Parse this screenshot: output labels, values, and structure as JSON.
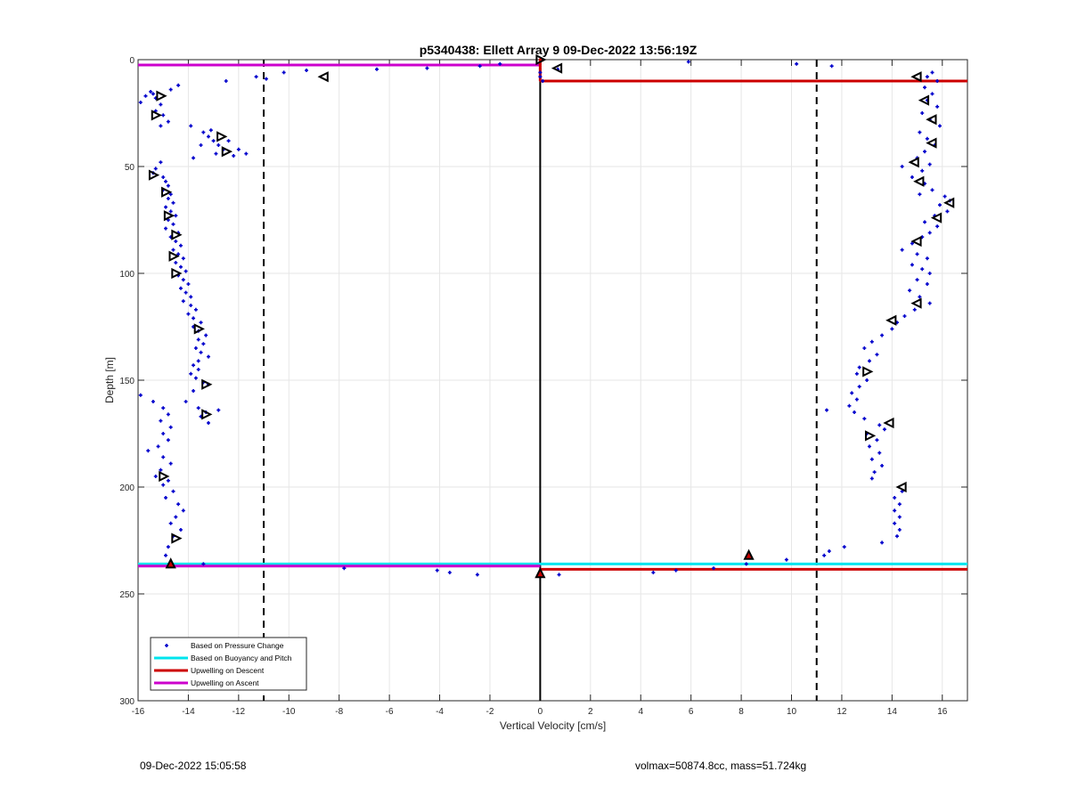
{
  "chart_data": {
    "type": "scatter",
    "title": "p5340438: Ellett Array 9 09-Dec-2022 13:56:19Z",
    "xlabel": "Vertical Velocity [cm/s]",
    "ylabel": "Depth [m]",
    "xlim": [
      -16,
      17
    ],
    "ylim": [
      300,
      0
    ],
    "y_reversed": true,
    "grid": true,
    "xticks": [
      -16,
      -14,
      -12,
      -10,
      -8,
      -6,
      -4,
      -2,
      0,
      2,
      4,
      6,
      8,
      10,
      12,
      14,
      16
    ],
    "yticks": [
      0,
      50,
      100,
      150,
      200,
      250,
      300
    ],
    "legend_position": "bottom-left",
    "legend": [
      {
        "label": "Based on Pressure Change",
        "color": "#0000cc",
        "style": "marker"
      },
      {
        "label": "Based on Buoyancy and Pitch",
        "color": "#00e5ee",
        "style": "line"
      },
      {
        "label": "Upwelling on Descent",
        "color": "#cc0000",
        "style": "line"
      },
      {
        "label": "Upwelling on Ascent",
        "color": "#cc00cc",
        "style": "line"
      }
    ],
    "vertical_lines": [
      {
        "x": -11,
        "style": "dashed",
        "color": "#000000"
      },
      {
        "x": 11,
        "style": "dashed",
        "color": "#000000"
      },
      {
        "x": 0,
        "style": "solid",
        "color": "#000000"
      }
    ],
    "series": [
      {
        "name": "Based on Buoyancy and Pitch",
        "type": "hline",
        "color": "#00e5ee",
        "segments": [
          {
            "x": [
              -16,
              17
            ],
            "y": 236
          }
        ]
      },
      {
        "name": "Upwelling on Descent",
        "type": "hline",
        "color": "#cc0000",
        "segments": [
          {
            "x": [
              0,
              17
            ],
            "y": 10
          },
          {
            "x": [
              0,
              17
            ],
            "y": 238.5
          }
        ]
      },
      {
        "name": "Upwelling on Ascent",
        "type": "hline",
        "color": "#cc00cc",
        "segments": [
          {
            "x": [
              -16,
              0
            ],
            "y": 2.5
          },
          {
            "x": [
              -16,
              0
            ],
            "y": 237
          }
        ]
      },
      {
        "name": "Based on Pressure Change",
        "type": "scatter",
        "color": "#0000cc",
        "points": [
          [
            -15.9,
            20
          ],
          [
            -15.7,
            17
          ],
          [
            -15.5,
            15
          ],
          [
            -15.3,
            18
          ],
          [
            -15.1,
            21
          ],
          [
            -15.3,
            24
          ],
          [
            -15.0,
            26
          ],
          [
            -14.8,
            29
          ],
          [
            -15.1,
            31
          ],
          [
            -15.4,
            16
          ],
          [
            -14.4,
            12
          ],
          [
            -14.7,
            14
          ],
          [
            -13.9,
            31
          ],
          [
            -13.4,
            34
          ],
          [
            -13.2,
            36
          ],
          [
            -13.0,
            38
          ],
          [
            -12.8,
            40
          ],
          [
            -12.6,
            42
          ],
          [
            -12.9,
            44
          ],
          [
            -13.5,
            40
          ],
          [
            -13.8,
            46
          ],
          [
            -12.2,
            45
          ],
          [
            -12.0,
            42
          ],
          [
            -12.4,
            38
          ],
          [
            -11.7,
            44
          ],
          [
            -13.1,
            33
          ],
          [
            -15.1,
            48
          ],
          [
            -15.3,
            51
          ],
          [
            -15.4,
            53
          ],
          [
            -15.0,
            55
          ],
          [
            -14.9,
            57
          ],
          [
            -14.8,
            59
          ],
          [
            -15.0,
            61
          ],
          [
            -14.7,
            63
          ],
          [
            -14.8,
            65
          ],
          [
            -14.6,
            67
          ],
          [
            -14.9,
            69
          ],
          [
            -14.7,
            71
          ],
          [
            -14.5,
            73
          ],
          [
            -14.8,
            75
          ],
          [
            -14.6,
            77
          ],
          [
            -14.9,
            79
          ],
          [
            -14.4,
            81
          ],
          [
            -14.7,
            83
          ],
          [
            -14.5,
            85
          ],
          [
            -14.3,
            87
          ],
          [
            -14.6,
            89
          ],
          [
            -14.4,
            91
          ],
          [
            -14.2,
            93
          ],
          [
            -14.5,
            95
          ],
          [
            -14.3,
            97
          ],
          [
            -14.1,
            99
          ],
          [
            -14.4,
            101
          ],
          [
            -14.2,
            103
          ],
          [
            -14.0,
            105
          ],
          [
            -14.3,
            107
          ],
          [
            -14.1,
            109
          ],
          [
            -13.9,
            111
          ],
          [
            -14.2,
            113
          ],
          [
            -13.9,
            115
          ],
          [
            -13.7,
            117
          ],
          [
            -14.0,
            119
          ],
          [
            -13.8,
            121
          ],
          [
            -13.5,
            123
          ],
          [
            -13.8,
            125
          ],
          [
            -13.6,
            127
          ],
          [
            -13.3,
            129
          ],
          [
            -13.6,
            131
          ],
          [
            -13.4,
            133
          ],
          [
            -13.7,
            135
          ],
          [
            -13.5,
            137
          ],
          [
            -13.2,
            139
          ],
          [
            -13.6,
            141
          ],
          [
            -13.8,
            143
          ],
          [
            -13.6,
            145
          ],
          [
            -13.9,
            147
          ],
          [
            -13.7,
            149
          ],
          [
            -13.4,
            151
          ],
          [
            -13.2,
            152
          ],
          [
            -13.8,
            155
          ],
          [
            -14.1,
            160
          ],
          [
            -13.6,
            163
          ],
          [
            -13.3,
            165
          ],
          [
            -13.5,
            167
          ],
          [
            -13.2,
            170
          ],
          [
            -12.8,
            164
          ],
          [
            -15.9,
            157
          ],
          [
            -15.4,
            160
          ],
          [
            -15.0,
            163
          ],
          [
            -14.8,
            166
          ],
          [
            -15.1,
            169
          ],
          [
            -14.7,
            172
          ],
          [
            -15.0,
            175
          ],
          [
            -14.8,
            178
          ],
          [
            -15.2,
            181
          ],
          [
            -15.6,
            183
          ],
          [
            -15.0,
            186
          ],
          [
            -14.7,
            189
          ],
          [
            -15.1,
            192
          ],
          [
            -15.3,
            195
          ],
          [
            -14.8,
            197
          ],
          [
            -15.0,
            199
          ],
          [
            -14.6,
            202
          ],
          [
            -14.9,
            205
          ],
          [
            -14.4,
            208
          ],
          [
            -14.2,
            211
          ],
          [
            -14.5,
            214
          ],
          [
            -14.7,
            217
          ],
          [
            -14.3,
            220
          ],
          [
            -14.6,
            223
          ],
          [
            -14.8,
            228
          ],
          [
            -14.9,
            232
          ],
          [
            -13.4,
            236
          ],
          [
            -10.2,
            6
          ],
          [
            -9.3,
            5
          ],
          [
            -6.5,
            4.5
          ],
          [
            -4.5,
            4
          ],
          [
            -2.4,
            3
          ],
          [
            -1.6,
            2
          ],
          [
            -12.5,
            10
          ],
          [
            -11.3,
            8
          ],
          [
            -10.9,
            9
          ],
          [
            -7.8,
            238
          ],
          [
            -4.1,
            239
          ],
          [
            -3.6,
            240
          ],
          [
            -2.5,
            241
          ],
          [
            0.0,
            6
          ],
          [
            0.0,
            8
          ],
          [
            0.1,
            10
          ],
          [
            0.7,
            4.5
          ],
          [
            5.9,
            1
          ],
          [
            10.2,
            2
          ],
          [
            11.6,
            3
          ],
          [
            0.75,
            241
          ],
          [
            4.5,
            240
          ],
          [
            5.4,
            239
          ],
          [
            6.9,
            238
          ],
          [
            8.2,
            236
          ],
          [
            9.8,
            234
          ],
          [
            11.3,
            232
          ],
          [
            11.5,
            230
          ],
          [
            12.1,
            228
          ],
          [
            11.4,
            164
          ],
          [
            15.4,
            8
          ],
          [
            15.6,
            6
          ],
          [
            15.8,
            10
          ],
          [
            15.3,
            13
          ],
          [
            15.6,
            16
          ],
          [
            15.4,
            19
          ],
          [
            15.8,
            22
          ],
          [
            15.2,
            25
          ],
          [
            15.5,
            28
          ],
          [
            15.9,
            31
          ],
          [
            15.1,
            34
          ],
          [
            15.4,
            37
          ],
          [
            15.7,
            40
          ],
          [
            15.3,
            43
          ],
          [
            15.0,
            46
          ],
          [
            15.5,
            49
          ],
          [
            14.4,
            50
          ],
          [
            15.2,
            52
          ],
          [
            14.8,
            55
          ],
          [
            15.3,
            58
          ],
          [
            15.6,
            61
          ],
          [
            15.1,
            63
          ],
          [
            16.1,
            64
          ],
          [
            16.3,
            66
          ],
          [
            15.9,
            68
          ],
          [
            16.2,
            71
          ],
          [
            15.7,
            73
          ],
          [
            15.3,
            76
          ],
          [
            15.8,
            78
          ],
          [
            15.5,
            81
          ],
          [
            15.2,
            83
          ],
          [
            14.8,
            86
          ],
          [
            14.4,
            89
          ],
          [
            15.0,
            91
          ],
          [
            15.4,
            93
          ],
          [
            14.8,
            96
          ],
          [
            15.2,
            98
          ],
          [
            15.5,
            100
          ],
          [
            15.0,
            103
          ],
          [
            15.4,
            105
          ],
          [
            14.7,
            108
          ],
          [
            15.1,
            111
          ],
          [
            15.5,
            114
          ],
          [
            14.9,
            117
          ],
          [
            14.5,
            120
          ],
          [
            14.2,
            123
          ],
          [
            14.0,
            126
          ],
          [
            13.6,
            129
          ],
          [
            13.2,
            132
          ],
          [
            12.9,
            135
          ],
          [
            13.4,
            138
          ],
          [
            13.1,
            141
          ],
          [
            12.7,
            144
          ],
          [
            12.6,
            147
          ],
          [
            13.0,
            150
          ],
          [
            12.7,
            153
          ],
          [
            12.4,
            156
          ],
          [
            12.6,
            159
          ],
          [
            12.3,
            162
          ],
          [
            12.5,
            165
          ],
          [
            12.9,
            168
          ],
          [
            13.5,
            171
          ],
          [
            13.7,
            173
          ],
          [
            13.0,
            175
          ],
          [
            13.4,
            178
          ],
          [
            13.1,
            181
          ],
          [
            13.5,
            184
          ],
          [
            13.2,
            187
          ],
          [
            13.6,
            190
          ],
          [
            13.3,
            193
          ],
          [
            13.2,
            196
          ],
          [
            14.4,
            202
          ],
          [
            14.1,
            205
          ],
          [
            14.3,
            208
          ],
          [
            14.1,
            211
          ],
          [
            14.3,
            214
          ],
          [
            14.1,
            217
          ],
          [
            14.3,
            220
          ],
          [
            14.2,
            223
          ],
          [
            13.6,
            226
          ]
        ]
      },
      {
        "name": "Left-pointing triangles",
        "type": "marker",
        "marker": "triangle-left",
        "color": "#000000",
        "points": [
          [
            15.0,
            8
          ],
          [
            15.3,
            19
          ],
          [
            15.6,
            28
          ],
          [
            15.6,
            39
          ],
          [
            14.9,
            48
          ],
          [
            15.1,
            57
          ],
          [
            16.3,
            67
          ],
          [
            15.8,
            74
          ],
          [
            15.0,
            85
          ],
          [
            15.0,
            114
          ],
          [
            14.0,
            122
          ],
          [
            14.4,
            200
          ],
          [
            13.9,
            170
          ],
          [
            -8.6,
            8
          ],
          [
            0.7,
            4
          ]
        ]
      },
      {
        "name": "Right-pointing triangles",
        "type": "marker",
        "marker": "triangle-right",
        "color": "#000000",
        "points": [
          [
            -15.1,
            17
          ],
          [
            -15.3,
            26
          ],
          [
            -15.4,
            54
          ],
          [
            -14.9,
            62
          ],
          [
            -14.8,
            73
          ],
          [
            -14.5,
            82
          ],
          [
            -14.6,
            92
          ],
          [
            -14.5,
            100
          ],
          [
            -13.6,
            126
          ],
          [
            -13.3,
            152
          ],
          [
            -13.3,
            166
          ],
          [
            -15.0,
            195
          ],
          [
            -14.5,
            224
          ],
          [
            -12.7,
            36
          ],
          [
            -12.5,
            43
          ],
          [
            0.0,
            0
          ],
          [
            13.1,
            176
          ],
          [
            13.0,
            146
          ]
        ]
      },
      {
        "name": "Red triangle markers",
        "type": "marker",
        "marker": "triangle-up-red",
        "color": "#cc0000",
        "points": [
          [
            8.3,
            232
          ],
          [
            0.0,
            240.5
          ],
          [
            -14.7,
            236
          ]
        ]
      }
    ]
  },
  "footer": {
    "left": "09-Dec-2022 15:05:58",
    "right": "volmax=50874.8cc, mass=51.724kg"
  }
}
